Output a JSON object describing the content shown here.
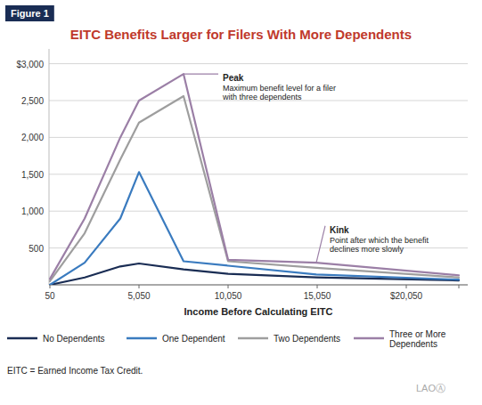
{
  "chart_data": {
    "type": "line",
    "title": "EITC Benefits Larger for Filers With More Dependents",
    "figure_label": "Figure 1",
    "xlabel": "Income Before Calculating EITC",
    "footnote": "EITC = Earned Income Tax Credit.",
    "logo": "LAOⒶ",
    "x": [
      50,
      2000,
      4000,
      5050,
      7550,
      10050,
      15000,
      23000
    ],
    "series": [
      {
        "name": "No Dependents",
        "color": "#1a2d54",
        "values": [
          0,
          100,
          250,
          290,
          210,
          150,
          100,
          60
        ]
      },
      {
        "name": "One Dependent",
        "color": "#3a7bbf",
        "values": [
          0,
          300,
          900,
          1530,
          320,
          260,
          140,
          70
        ]
      },
      {
        "name": "Two Dependents",
        "color": "#9e9e9e",
        "values": [
          50,
          700,
          1700,
          2200,
          2560,
          320,
          230,
          100
        ]
      },
      {
        "name": "Three or More\nDependents",
        "color": "#9b7fa6",
        "values": [
          80,
          900,
          2000,
          2500,
          2860,
          340,
          300,
          130
        ]
      }
    ],
    "xlim": [
      0,
      23500
    ],
    "ylim": [
      0,
      3200
    ],
    "xticks": [
      50,
      {
        "value": 5050,
        "label": "5,050"
      },
      {
        "value": 10050,
        "label": "10,050"
      },
      {
        "value": 15050,
        "label": "15,050"
      },
      {
        "value": 20050,
        "label": "$20,050"
      },
      {
        "value": 23000,
        "label": null
      }
    ],
    "yticks": [
      {
        "value": 3000,
        "label": "$3,000"
      },
      {
        "value": 2500,
        "label": "2,500"
      },
      {
        "value": 2000,
        "label": "2,000"
      },
      {
        "value": 1500,
        "label": "1,500"
      },
      {
        "value": 1000,
        "label": "1,000"
      },
      500,
      {
        "value": 0,
        "label": null
      }
    ],
    "grid": true,
    "legend": "bottom",
    "annotations": [
      {
        "title": "Peak",
        "text": "Maximum benefit level for a filer\nwith three dependents",
        "x": 7550,
        "y": 2860,
        "text_x": 9500,
        "text_y": 2860
      },
      {
        "title": "Kink",
        "text": "Point after which the benefit\ndeclines more slowly",
        "x": 15000,
        "y": 300,
        "text_x": 15500,
        "text_y": 800
      }
    ]
  }
}
